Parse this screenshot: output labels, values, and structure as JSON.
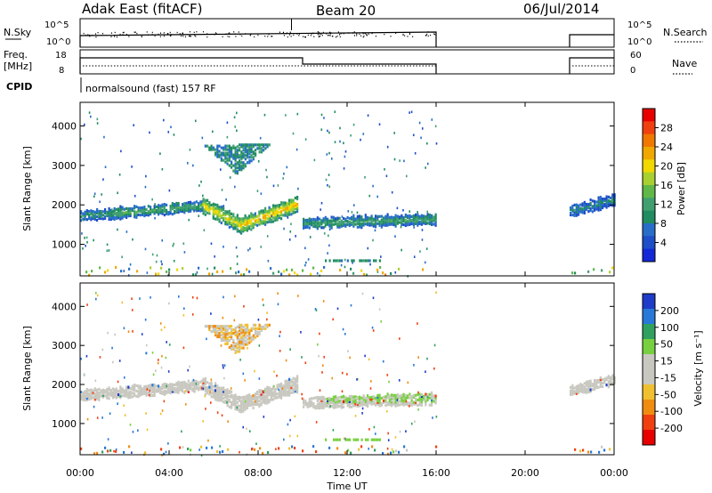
{
  "header": {
    "station": "Adak East (fitACF)",
    "beam": "Beam 20",
    "date": "06/Jul/2014"
  },
  "strips": {
    "nsky": {
      "label": "N.Sky",
      "ticks": [
        "10^5",
        "10^0"
      ],
      "right_label": "N.Search"
    },
    "freq": {
      "label_line1": "Freq.",
      "label_line2": "[MHz]",
      "ticks_left": [
        "18",
        "8"
      ],
      "ticks_right": [
        "60",
        "0"
      ],
      "right_label": "Nave"
    },
    "cpid": {
      "label": "CPID",
      "program": "normalsound (fast) 157 RF"
    }
  },
  "axes": {
    "xlabel": "Time UT",
    "x_ticks": [
      "00:00",
      "04:00",
      "08:00",
      "12:00",
      "16:00",
      "20:00",
      "00:00"
    ],
    "ylabel": "Slant Range [km]",
    "y_ticks": [
      "1000",
      "2000",
      "3000",
      "4000"
    ],
    "ylim": [
      200,
      4600
    ]
  },
  "colorbars": {
    "power": {
      "label": "Power [dB]",
      "ticks": [
        "28",
        "24",
        "20",
        "16",
        "12",
        "8",
        "4"
      ],
      "colors": [
        "#e80000",
        "#f04010",
        "#f07800",
        "#f0a800",
        "#f0d800",
        "#a8d030",
        "#60b848",
        "#40a070",
        "#208c60",
        "#286ec8",
        "#1e4ec8",
        "#1428d8"
      ]
    },
    "velocity": {
      "label": "Velocity [m s⁻¹]",
      "ticks": [
        "200",
        "100",
        "50",
        "15",
        "-15",
        "-50",
        "-100",
        "-200"
      ],
      "colors": [
        "#1e3cc8",
        "#2878d8",
        "#30a060",
        "#78d040",
        "#c8c8c0",
        "#c8c8c0",
        "#f0c030",
        "#f08c10",
        "#f04010",
        "#e80000"
      ]
    }
  },
  "chart_data": [
    {
      "type": "heatmap",
      "panel": "power",
      "x_hours": [
        0,
        24
      ],
      "data_gap_hours": [
        16,
        22
      ],
      "cpid_change_hour": 10,
      "echo_bands": [
        {
          "t_start": 0,
          "t_end": 1.5,
          "range_km": [
            1750,
            1800
          ],
          "power_db": 9
        },
        {
          "t_start": 1.5,
          "t_end": 5.5,
          "range_km": [
            1800,
            2000
          ],
          "power_db": 11
        },
        {
          "t_start": 5.5,
          "t_end": 7.2,
          "range_km": [
            2000,
            1500
          ],
          "power_db": 18
        },
        {
          "t_start": 7.2,
          "t_end": 9.8,
          "range_km": [
            1500,
            2050
          ],
          "power_db": 20
        },
        {
          "t_start": 10,
          "t_end": 16,
          "range_km": [
            1550,
            1650
          ],
          "power_db": 10
        },
        {
          "t_start": 22,
          "t_end": 24,
          "range_km": [
            1850,
            2150
          ],
          "power_db": 7
        }
      ],
      "far_echo": {
        "t_start": 5.5,
        "t_end": 8.5,
        "range_km": [
          2800,
          3550
        ],
        "power_db": 8
      }
    },
    {
      "type": "heatmap",
      "panel": "velocity",
      "x_hours": [
        0,
        24
      ],
      "data_gap_hours": [
        16,
        22
      ],
      "dominant_velocity_mps": [
        -15,
        15
      ],
      "positive_patches": [
        {
          "t_start": 11,
          "t_end": 16,
          "range_km": [
            1550,
            1800
          ],
          "velocity_mps": 30
        },
        {
          "t_start": 11,
          "t_end": 13.5,
          "range_km": [
            550,
            650
          ],
          "velocity_mps": 30
        }
      ],
      "negative_patches": [
        {
          "t_start": 6,
          "t_end": 8.5,
          "range_km": [
            2900,
            3550
          ],
          "velocity_mps": -60
        }
      ]
    }
  ]
}
